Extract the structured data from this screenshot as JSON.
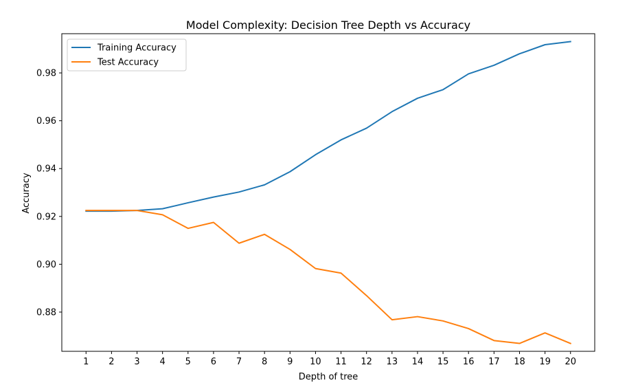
{
  "chart_data": {
    "type": "line",
    "title": "Model Complexity: Decision Tree Depth vs Accuracy",
    "xlabel": "Depth of tree",
    "ylabel": "Accuracy",
    "x": [
      1,
      2,
      3,
      4,
      5,
      6,
      7,
      8,
      9,
      10,
      11,
      12,
      13,
      14,
      15,
      16,
      17,
      18,
      19,
      20
    ],
    "xlim": [
      0.05,
      20.95
    ],
    "ylim": [
      0.8636,
      0.9964
    ],
    "yticks": [
      0.88,
      0.9,
      0.92,
      0.94,
      0.96,
      0.98
    ],
    "ytick_labels": [
      "0.88",
      "0.90",
      "0.92",
      "0.94",
      "0.96",
      "0.98"
    ],
    "grid": false,
    "legend_position": "upper-left",
    "series": [
      {
        "name": "Training Accuracy",
        "color": "#1f77b4",
        "values": [
          0.9222,
          0.9222,
          0.9225,
          0.9232,
          0.9257,
          0.9281,
          0.9302,
          0.9332,
          0.9387,
          0.9458,
          0.952,
          0.9569,
          0.9638,
          0.9694,
          0.973,
          0.9796,
          0.9832,
          0.988,
          0.9918,
          0.9931
        ]
      },
      {
        "name": "Test Accuracy",
        "color": "#ff7f0e",
        "values": [
          0.9225,
          0.9225,
          0.9225,
          0.9207,
          0.915,
          0.9175,
          0.9088,
          0.9125,
          0.9062,
          0.8982,
          0.8963,
          0.8869,
          0.8768,
          0.8781,
          0.8763,
          0.8731,
          0.8681,
          0.8669,
          0.8713,
          0.8669
        ]
      }
    ]
  }
}
